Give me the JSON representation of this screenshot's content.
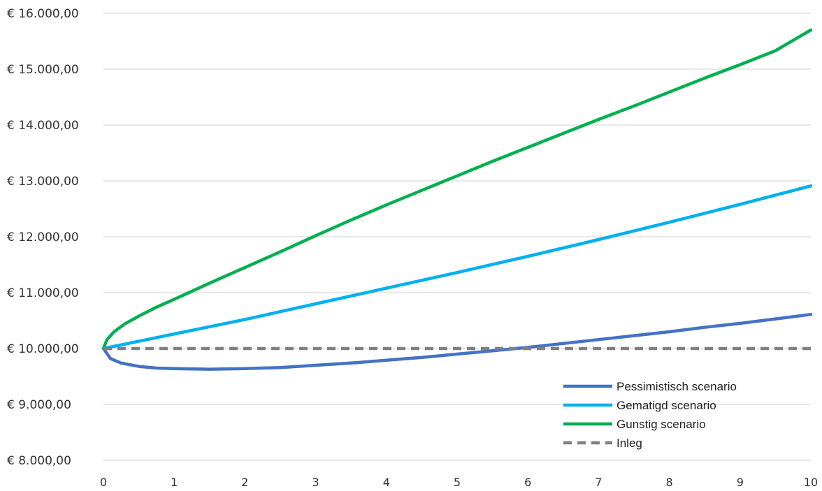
{
  "chart_data": {
    "type": "line",
    "title": "",
    "xlabel": "",
    "ylabel": "",
    "x_ticks": [
      "0",
      "1",
      "2",
      "3",
      "4",
      "5",
      "6",
      "7",
      "8",
      "9",
      "10"
    ],
    "y_ticks": [
      "€ 8.000,00",
      "€ 9.000,00",
      "€ 10.000,00",
      "€ 11.000,00",
      "€ 12.000,00",
      "€ 13.000,00",
      "€ 14.000,00",
      "€ 15.000,00",
      "€ 16.000,00"
    ],
    "xlim": [
      0,
      10
    ],
    "ylim": [
      8000,
      16000
    ],
    "grid": "horizontal",
    "legend_position": "bottom-right",
    "series": [
      {
        "name": "Pessimistisch scenario",
        "color": "#4472C4",
        "style": "solid",
        "x": [
          0,
          0.1,
          0.25,
          0.5,
          0.75,
          1,
          1.5,
          2,
          2.5,
          3,
          3.5,
          4,
          4.5,
          5,
          5.5,
          6,
          6.5,
          7,
          7.5,
          8,
          8.5,
          9,
          9.5,
          10
        ],
        "y": [
          10000,
          9820,
          9740,
          9680,
          9650,
          9640,
          9630,
          9640,
          9660,
          9700,
          9740,
          9790,
          9840,
          9900,
          9960,
          10020,
          10090,
          10160,
          10230,
          10300,
          10380,
          10450,
          10530,
          10610
        ]
      },
      {
        "name": "Gematigd scenario",
        "color": "#00B0F0",
        "style": "solid",
        "x": [
          0,
          1,
          2,
          3,
          4,
          5,
          6,
          7,
          8,
          9,
          10
        ],
        "y": [
          10000,
          10260,
          10520,
          10800,
          11080,
          11360,
          11650,
          11950,
          12260,
          12580,
          12910
        ]
      },
      {
        "name": "Gunstig scenario",
        "color": "#00B050",
        "style": "solid",
        "x": [
          0,
          0.05,
          0.15,
          0.3,
          0.5,
          0.75,
          1,
          1.5,
          2,
          2.5,
          3,
          3.5,
          4,
          4.5,
          5,
          5.5,
          6,
          6.5,
          7,
          7.5,
          8,
          8.5,
          9,
          9.5,
          10
        ],
        "y": [
          10000,
          10160,
          10300,
          10440,
          10580,
          10740,
          10880,
          11170,
          11450,
          11730,
          12020,
          12300,
          12570,
          12830,
          13090,
          13350,
          13600,
          13850,
          14100,
          14340,
          14590,
          14840,
          15080,
          15330,
          15700
        ]
      },
      {
        "name": "Inleg",
        "color": "#808080",
        "style": "dashed",
        "x": [
          0,
          10
        ],
        "y": [
          10000,
          10000
        ]
      }
    ]
  }
}
